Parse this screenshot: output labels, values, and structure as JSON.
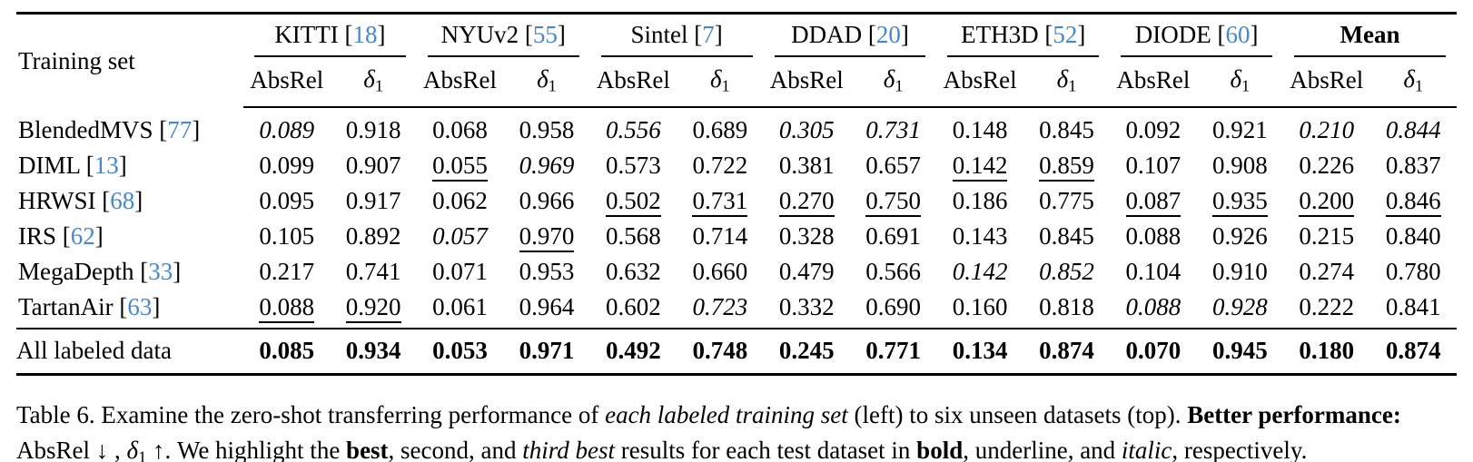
{
  "citation_color": "#4688c8",
  "table": {
    "row_header_label": "Training set",
    "metric_labels": {
      "absrel": "AbsRel",
      "delta": "δ",
      "delta_sub": "1"
    },
    "groups": [
      {
        "name": "KITTI",
        "cite": "18",
        "bold": false
      },
      {
        "name": "NYUv2",
        "cite": "55",
        "bold": false
      },
      {
        "name": "Sintel",
        "cite": "7",
        "bold": false
      },
      {
        "name": "DDAD",
        "cite": "20",
        "bold": false
      },
      {
        "name": "ETH3D",
        "cite": "52",
        "bold": false
      },
      {
        "name": "DIODE",
        "cite": "60",
        "bold": false
      },
      {
        "name": "Mean",
        "cite": "",
        "bold": true
      }
    ],
    "rows": [
      {
        "label": "BlendedMVS",
        "cite": "77",
        "cells": [
          {
            "v": "0.089",
            "s": "i"
          },
          {
            "v": "0.918",
            "s": ""
          },
          {
            "v": "0.068",
            "s": ""
          },
          {
            "v": "0.958",
            "s": ""
          },
          {
            "v": "0.556",
            "s": "i"
          },
          {
            "v": "0.689",
            "s": ""
          },
          {
            "v": "0.305",
            "s": "i"
          },
          {
            "v": "0.731",
            "s": "i"
          },
          {
            "v": "0.148",
            "s": ""
          },
          {
            "v": "0.845",
            "s": ""
          },
          {
            "v": "0.092",
            "s": ""
          },
          {
            "v": "0.921",
            "s": ""
          },
          {
            "v": "0.210",
            "s": "i"
          },
          {
            "v": "0.844",
            "s": "i"
          }
        ]
      },
      {
        "label": "DIML",
        "cite": "13",
        "cells": [
          {
            "v": "0.099",
            "s": ""
          },
          {
            "v": "0.907",
            "s": ""
          },
          {
            "v": "0.055",
            "s": "u"
          },
          {
            "v": "0.969",
            "s": "i"
          },
          {
            "v": "0.573",
            "s": ""
          },
          {
            "v": "0.722",
            "s": ""
          },
          {
            "v": "0.381",
            "s": ""
          },
          {
            "v": "0.657",
            "s": ""
          },
          {
            "v": "0.142",
            "s": "u"
          },
          {
            "v": "0.859",
            "s": "u"
          },
          {
            "v": "0.107",
            "s": ""
          },
          {
            "v": "0.908",
            "s": ""
          },
          {
            "v": "0.226",
            "s": ""
          },
          {
            "v": "0.837",
            "s": ""
          }
        ]
      },
      {
        "label": "HRWSI",
        "cite": "68",
        "cells": [
          {
            "v": "0.095",
            "s": ""
          },
          {
            "v": "0.917",
            "s": ""
          },
          {
            "v": "0.062",
            "s": ""
          },
          {
            "v": "0.966",
            "s": ""
          },
          {
            "v": "0.502",
            "s": "u"
          },
          {
            "v": "0.731",
            "s": "u"
          },
          {
            "v": "0.270",
            "s": "u"
          },
          {
            "v": "0.750",
            "s": "u"
          },
          {
            "v": "0.186",
            "s": ""
          },
          {
            "v": "0.775",
            "s": ""
          },
          {
            "v": "0.087",
            "s": "u"
          },
          {
            "v": "0.935",
            "s": "u"
          },
          {
            "v": "0.200",
            "s": "u"
          },
          {
            "v": "0.846",
            "s": "u"
          }
        ]
      },
      {
        "label": "IRS",
        "cite": "62",
        "cells": [
          {
            "v": "0.105",
            "s": ""
          },
          {
            "v": "0.892",
            "s": ""
          },
          {
            "v": "0.057",
            "s": "i"
          },
          {
            "v": "0.970",
            "s": "u"
          },
          {
            "v": "0.568",
            "s": ""
          },
          {
            "v": "0.714",
            "s": ""
          },
          {
            "v": "0.328",
            "s": ""
          },
          {
            "v": "0.691",
            "s": ""
          },
          {
            "v": "0.143",
            "s": ""
          },
          {
            "v": "0.845",
            "s": ""
          },
          {
            "v": "0.088",
            "s": ""
          },
          {
            "v": "0.926",
            "s": ""
          },
          {
            "v": "0.215",
            "s": ""
          },
          {
            "v": "0.840",
            "s": ""
          }
        ]
      },
      {
        "label": "MegaDepth",
        "cite": "33",
        "cells": [
          {
            "v": "0.217",
            "s": ""
          },
          {
            "v": "0.741",
            "s": ""
          },
          {
            "v": "0.071",
            "s": ""
          },
          {
            "v": "0.953",
            "s": ""
          },
          {
            "v": "0.632",
            "s": ""
          },
          {
            "v": "0.660",
            "s": ""
          },
          {
            "v": "0.479",
            "s": ""
          },
          {
            "v": "0.566",
            "s": ""
          },
          {
            "v": "0.142",
            "s": "i"
          },
          {
            "v": "0.852",
            "s": "i"
          },
          {
            "v": "0.104",
            "s": ""
          },
          {
            "v": "0.910",
            "s": ""
          },
          {
            "v": "0.274",
            "s": ""
          },
          {
            "v": "0.780",
            "s": ""
          }
        ]
      },
      {
        "label": "TartanAir",
        "cite": "63",
        "cells": [
          {
            "v": "0.088",
            "s": "u"
          },
          {
            "v": "0.920",
            "s": "u"
          },
          {
            "v": "0.061",
            "s": ""
          },
          {
            "v": "0.964",
            "s": ""
          },
          {
            "v": "0.602",
            "s": ""
          },
          {
            "v": "0.723",
            "s": "i"
          },
          {
            "v": "0.332",
            "s": ""
          },
          {
            "v": "0.690",
            "s": ""
          },
          {
            "v": "0.160",
            "s": ""
          },
          {
            "v": "0.818",
            "s": ""
          },
          {
            "v": "0.088",
            "s": "i"
          },
          {
            "v": "0.928",
            "s": "i"
          },
          {
            "v": "0.222",
            "s": ""
          },
          {
            "v": "0.841",
            "s": ""
          }
        ]
      }
    ],
    "footer": {
      "label": "All labeled data",
      "cells": [
        {
          "v": "0.085",
          "s": "b"
        },
        {
          "v": "0.934",
          "s": "b"
        },
        {
          "v": "0.053",
          "s": "b"
        },
        {
          "v": "0.971",
          "s": "b"
        },
        {
          "v": "0.492",
          "s": "b"
        },
        {
          "v": "0.748",
          "s": "b"
        },
        {
          "v": "0.245",
          "s": "b"
        },
        {
          "v": "0.771",
          "s": "b"
        },
        {
          "v": "0.134",
          "s": "b"
        },
        {
          "v": "0.874",
          "s": "b"
        },
        {
          "v": "0.070",
          "s": "b"
        },
        {
          "v": "0.945",
          "s": "b"
        },
        {
          "v": "0.180",
          "s": "b"
        },
        {
          "v": "0.874",
          "s": "b"
        }
      ]
    }
  },
  "caption": {
    "lines": [
      [
        {
          "t": "Table 6. Examine the zero-shot transferring performance of ",
          "s": ""
        },
        {
          "t": "each labeled training set",
          "s": "i"
        },
        {
          "t": " (left) to six unseen datasets (top). ",
          "s": ""
        },
        {
          "t": "Better performance:",
          "s": "b"
        }
      ],
      [
        {
          "t": "AbsRel ↓ , ",
          "s": ""
        },
        {
          "t": "δ",
          "s": "i"
        },
        {
          "t": "1",
          "s": "sub"
        },
        {
          "t": " ↑. We highlight the ",
          "s": ""
        },
        {
          "t": "best",
          "s": "b"
        },
        {
          "t": ", ",
          "s": ""
        },
        {
          "t": "second",
          "s": "u"
        },
        {
          "t": ", and ",
          "s": ""
        },
        {
          "t": "third best",
          "s": "i"
        },
        {
          "t": " results for each test dataset in ",
          "s": ""
        },
        {
          "t": "bold",
          "s": "b"
        },
        {
          "t": ", ",
          "s": ""
        },
        {
          "t": "underline",
          "s": "u"
        },
        {
          "t": ", and ",
          "s": ""
        },
        {
          "t": "italic",
          "s": "i"
        },
        {
          "t": ", respectively.",
          "s": ""
        }
      ]
    ]
  }
}
